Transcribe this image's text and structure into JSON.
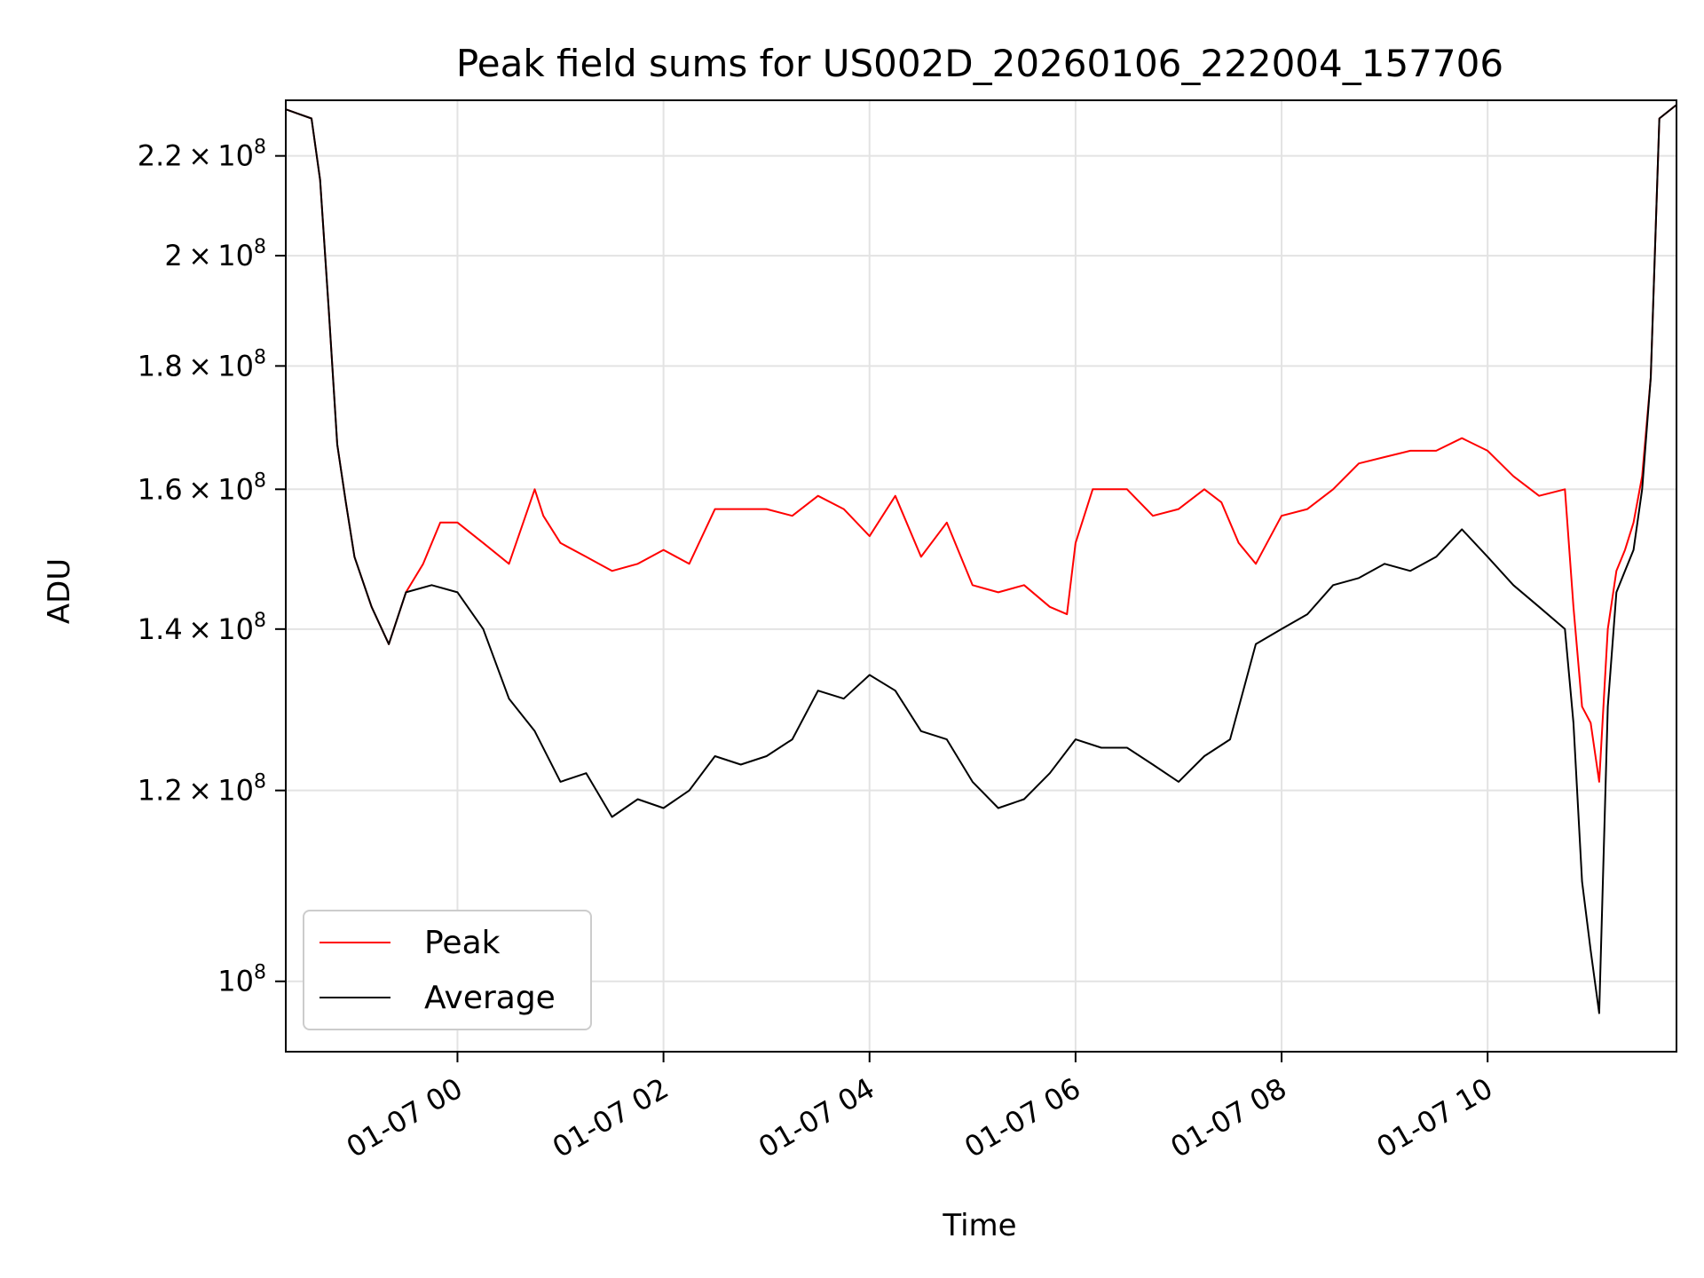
{
  "chart_data": {
    "type": "line",
    "title": "Peak field sums for US002D_20260106_222004_157706",
    "xlabel": "Time",
    "ylabel": "ADU",
    "yscale": "log",
    "xlim": [
      "2026-01-06 22:20",
      "2026-01-07 11:50"
    ],
    "ylim": [
      93500000,
      232000000
    ],
    "grid": true,
    "legend_position": "lower-left",
    "x_ticks": [
      {
        "value": "2026-01-07 00:00",
        "label": "01-07 00"
      },
      {
        "value": "2026-01-07 02:00",
        "label": "01-07 02"
      },
      {
        "value": "2026-01-07 04:00",
        "label": "01-07 04"
      },
      {
        "value": "2026-01-07 06:00",
        "label": "01-07 06"
      },
      {
        "value": "2026-01-07 08:00",
        "label": "01-07 08"
      },
      {
        "value": "2026-01-07 10:00",
        "label": "01-07 10"
      }
    ],
    "y_ticks": [
      {
        "value": 100000000,
        "mant": "",
        "exp": "8"
      },
      {
        "value": 120000000,
        "mant": "1.2",
        "exp": "8"
      },
      {
        "value": 140000000,
        "mant": "1.4",
        "exp": "8"
      },
      {
        "value": 160000000,
        "mant": "1.6",
        "exp": "8"
      },
      {
        "value": 180000000,
        "mant": "1.8",
        "exp": "8"
      },
      {
        "value": 200000000,
        "mant": "2",
        "exp": "8"
      },
      {
        "value": 220000000,
        "mant": "2.2",
        "exp": "8"
      }
    ],
    "series": [
      {
        "name": "Peak",
        "color": "#ff0000",
        "x": [
          "2026-01-06 22:20",
          "2026-01-06 22:35",
          "2026-01-06 22:40",
          "2026-01-06 22:45",
          "2026-01-06 22:50",
          "2026-01-06 22:55",
          "2026-01-06 23:00",
          "2026-01-06 23:10",
          "2026-01-06 23:20",
          "2026-01-06 23:30",
          "2026-01-06 23:40",
          "2026-01-06 23:50",
          "2026-01-07 00:00",
          "2026-01-07 00:15",
          "2026-01-07 00:30",
          "2026-01-07 00:45",
          "2026-01-07 00:50",
          "2026-01-07 01:00",
          "2026-01-07 01:15",
          "2026-01-07 01:30",
          "2026-01-07 01:45",
          "2026-01-07 02:00",
          "2026-01-07 02:15",
          "2026-01-07 02:30",
          "2026-01-07 02:45",
          "2026-01-07 03:00",
          "2026-01-07 03:15",
          "2026-01-07 03:30",
          "2026-01-07 03:45",
          "2026-01-07 04:00",
          "2026-01-07 04:15",
          "2026-01-07 04:30",
          "2026-01-07 04:45",
          "2026-01-07 05:00",
          "2026-01-07 05:15",
          "2026-01-07 05:30",
          "2026-01-07 05:45",
          "2026-01-07 05:55",
          "2026-01-07 06:00",
          "2026-01-07 06:10",
          "2026-01-07 06:30",
          "2026-01-07 06:45",
          "2026-01-07 07:00",
          "2026-01-07 07:15",
          "2026-01-07 07:25",
          "2026-01-07 07:35",
          "2026-01-07 07:45",
          "2026-01-07 08:00",
          "2026-01-07 08:15",
          "2026-01-07 08:30",
          "2026-01-07 08:45",
          "2026-01-07 09:00",
          "2026-01-07 09:15",
          "2026-01-07 09:30",
          "2026-01-07 09:45",
          "2026-01-07 10:00",
          "2026-01-07 10:15",
          "2026-01-07 10:30",
          "2026-01-07 10:45",
          "2026-01-07 10:50",
          "2026-01-07 10:55",
          "2026-01-07 11:00",
          "2026-01-07 11:05",
          "2026-01-07 11:10",
          "2026-01-07 11:15",
          "2026-01-07 11:20",
          "2026-01-07 11:25",
          "2026-01-07 11:30",
          "2026-01-07 11:35",
          "2026-01-07 11:40",
          "2026-01-07 11:50"
        ],
        "values": [
          230000000,
          228000000,
          215000000,
          190000000,
          167000000,
          158000000,
          150000000,
          143000000,
          138000000,
          145000000,
          149000000,
          155000000,
          155000000,
          152000000,
          149000000,
          160000000,
          156000000,
          152000000,
          150000000,
          148000000,
          149000000,
          151000000,
          149000000,
          157000000,
          157000000,
          157000000,
          156000000,
          159000000,
          157000000,
          153000000,
          159000000,
          150000000,
          155000000,
          146000000,
          145000000,
          146000000,
          143000000,
          142000000,
          152000000,
          160000000,
          160000000,
          156000000,
          157000000,
          160000000,
          158000000,
          152000000,
          149000000,
          156000000,
          157000000,
          160000000,
          164000000,
          165000000,
          166000000,
          166000000,
          168000000,
          166000000,
          162000000,
          159000000,
          160000000,
          143000000,
          130000000,
          128000000,
          121000000,
          140000000,
          148000000,
          151000000,
          155000000,
          162000000,
          178000000,
          228000000,
          231000000
        ]
      },
      {
        "name": "Average",
        "color": "#000000",
        "x": [
          "2026-01-06 22:20",
          "2026-01-06 22:35",
          "2026-01-06 22:40",
          "2026-01-06 22:45",
          "2026-01-06 22:50",
          "2026-01-06 22:55",
          "2026-01-06 23:00",
          "2026-01-06 23:10",
          "2026-01-06 23:20",
          "2026-01-06 23:30",
          "2026-01-06 23:45",
          "2026-01-07 00:00",
          "2026-01-07 00:15",
          "2026-01-07 00:30",
          "2026-01-07 00:45",
          "2026-01-07 01:00",
          "2026-01-07 01:15",
          "2026-01-07 01:30",
          "2026-01-07 01:45",
          "2026-01-07 02:00",
          "2026-01-07 02:15",
          "2026-01-07 02:30",
          "2026-01-07 02:45",
          "2026-01-07 03:00",
          "2026-01-07 03:15",
          "2026-01-07 03:30",
          "2026-01-07 03:45",
          "2026-01-07 04:00",
          "2026-01-07 04:15",
          "2026-01-07 04:30",
          "2026-01-07 04:45",
          "2026-01-07 05:00",
          "2026-01-07 05:15",
          "2026-01-07 05:30",
          "2026-01-07 05:45",
          "2026-01-07 06:00",
          "2026-01-07 06:15",
          "2026-01-07 06:30",
          "2026-01-07 06:45",
          "2026-01-07 07:00",
          "2026-01-07 07:15",
          "2026-01-07 07:30",
          "2026-01-07 07:45",
          "2026-01-07 08:00",
          "2026-01-07 08:15",
          "2026-01-07 08:30",
          "2026-01-07 08:45",
          "2026-01-07 09:00",
          "2026-01-07 09:15",
          "2026-01-07 09:30",
          "2026-01-07 09:45",
          "2026-01-07 10:00",
          "2026-01-07 10:15",
          "2026-01-07 10:30",
          "2026-01-07 10:45",
          "2026-01-07 10:50",
          "2026-01-07 10:55",
          "2026-01-07 11:00",
          "2026-01-07 11:05",
          "2026-01-07 11:10",
          "2026-01-07 11:15",
          "2026-01-07 11:20",
          "2026-01-07 11:25",
          "2026-01-07 11:30",
          "2026-01-07 11:35",
          "2026-01-07 11:40",
          "2026-01-07 11:50"
        ],
        "values": [
          230000000,
          228000000,
          215000000,
          190000000,
          167000000,
          158000000,
          150000000,
          143000000,
          138000000,
          145000000,
          146000000,
          145000000,
          140000000,
          131000000,
          127000000,
          121000000,
          122000000,
          117000000,
          119000000,
          118000000,
          120000000,
          124000000,
          123000000,
          124000000,
          126000000,
          132000000,
          131000000,
          134000000,
          132000000,
          127000000,
          126000000,
          121000000,
          118000000,
          119000000,
          122000000,
          126000000,
          125000000,
          125000000,
          123000000,
          121000000,
          124000000,
          126000000,
          138000000,
          140000000,
          142000000,
          146000000,
          147000000,
          149000000,
          148000000,
          150000000,
          154000000,
          150000000,
          146000000,
          143000000,
          140000000,
          128000000,
          110000000,
          103000000,
          97000000,
          130000000,
          145000000,
          148000000,
          151000000,
          160000000,
          178000000,
          228000000,
          231000000
        ]
      }
    ]
  }
}
